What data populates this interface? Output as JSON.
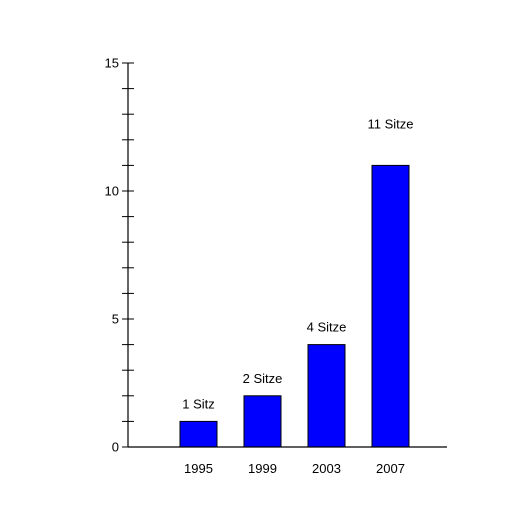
{
  "chart_data": {
    "type": "bar",
    "categories": [
      "1995",
      "1999",
      "2003",
      "2007"
    ],
    "values": [
      1,
      2,
      4,
      11
    ],
    "data_labels": [
      "1 Sitz",
      "2 Sitze",
      "4 Sitze",
      "11 Sitze"
    ],
    "title": "",
    "xlabel": "",
    "ylabel": "",
    "ylim": [
      0,
      15
    ],
    "y_ticks": [
      0,
      5,
      10,
      15
    ],
    "y_minor_step": 1,
    "grid": false,
    "bar_color": "#0000ff",
    "axis_color": "#000000"
  }
}
